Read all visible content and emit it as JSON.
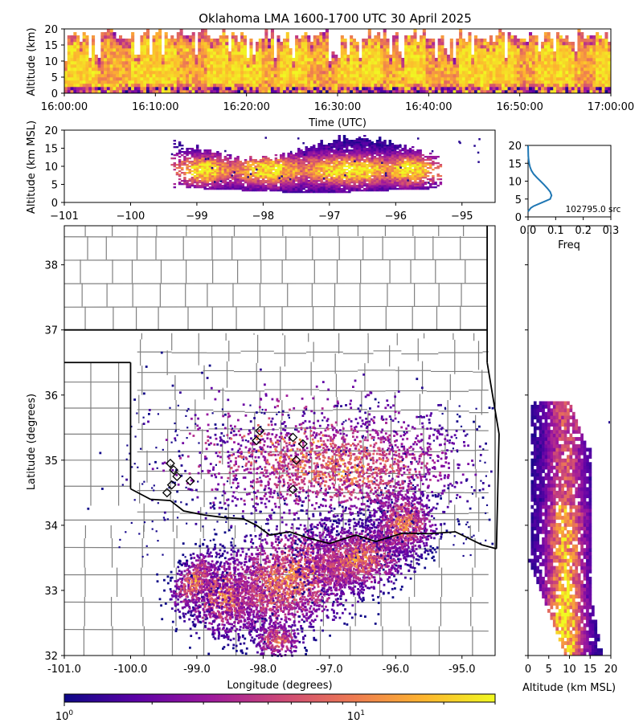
{
  "title": "Oklahoma LMA 1600-1700 UTC 30 April 2025",
  "colors": {
    "colormap": [
      "#0d0887",
      "#5c01a6",
      "#9c179e",
      "#cc4778",
      "#ed7953",
      "#fdb42f",
      "#f0f921"
    ],
    "county_lines": "#808080",
    "state_lines": "#000000",
    "freq_line": "#1f77b4"
  },
  "chart_data": [
    {
      "id": "time_height",
      "type": "heatmap",
      "xlabel": "Time (UTC)",
      "ylabel": "Altitude (km)",
      "x_ticks": [
        "16:00:00",
        "16:10:00",
        "16:20:00",
        "16:30:00",
        "16:40:00",
        "16:50:00",
        "17:00:00"
      ],
      "y_ticks": [
        0,
        5,
        10,
        15,
        20
      ],
      "ylim": [
        0,
        20
      ]
    },
    {
      "id": "lon_alt",
      "type": "heatmap",
      "ylabel": "Altitude (km MSL)",
      "x_ticks": [
        "−101",
        "−100",
        "−99",
        "−98",
        "−97",
        "−96",
        "−95"
      ],
      "y_ticks": [
        0,
        5,
        10,
        15,
        20
      ],
      "xlim": [
        -101,
        -94.5
      ],
      "ylim": [
        0,
        20
      ]
    },
    {
      "id": "alt_histogram",
      "type": "line",
      "xlabel": "Freq",
      "x_ticks": [
        "0.0",
        "0.1",
        "0.2",
        "0.3"
      ],
      "y_ticks": [
        0,
        5,
        10,
        15,
        20
      ],
      "xlim": [
        0,
        0.3
      ],
      "ylim": [
        0,
        20
      ],
      "annotation": "102795.0 src",
      "freq": [
        0,
        0.005,
        0.01,
        0.02,
        0.05,
        0.08,
        0.085,
        0.08,
        0.07,
        0.058,
        0.045,
        0.032,
        0.02,
        0.012,
        0.007,
        0.004,
        0.002,
        0.001,
        0.0005,
        0.0002,
        0
      ],
      "alt": [
        1.5,
        2,
        2.5,
        3,
        4,
        5,
        6,
        7,
        8,
        9,
        10,
        11,
        12,
        13,
        14,
        15,
        16,
        17,
        18,
        19,
        20
      ]
    },
    {
      "id": "plan_view",
      "type": "heatmap",
      "xlabel": "Longitude (degrees)",
      "ylabel": "Latitude (degrees)",
      "x_ticks": [
        "-101.0",
        "-100.0",
        "-99.0",
        "-98.0",
        "-97.0",
        "-96.0",
        "-95.0"
      ],
      "y_ticks": [
        "32",
        "33",
        "34",
        "35",
        "36",
        "37",
        "38"
      ],
      "xlim": [
        -101,
        -94.5
      ],
      "ylim": [
        32,
        38.6
      ]
    },
    {
      "id": "alt_lat",
      "type": "heatmap",
      "xlabel": "Altitude (km MSL)",
      "x_ticks": [
        "0",
        "5",
        "10",
        "15",
        "20"
      ],
      "xlim": [
        0,
        20
      ]
    },
    {
      "id": "colorbar",
      "type": "heatmap",
      "scale": "log",
      "ticks": [
        "10",
        "10"
      ],
      "tick_exponents": [
        "0",
        "1"
      ]
    }
  ]
}
